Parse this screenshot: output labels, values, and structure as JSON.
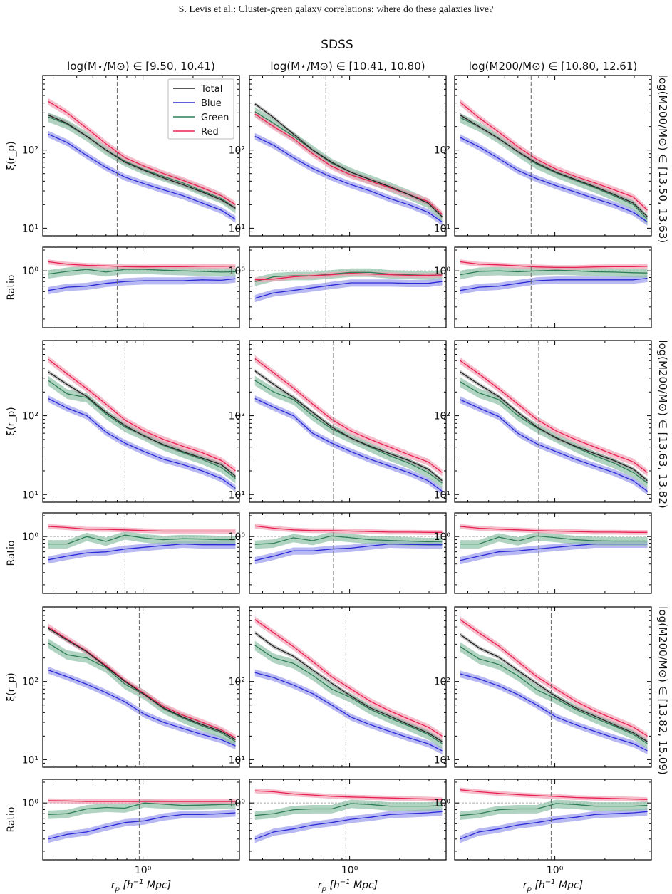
{
  "page_header": "S. Levis et al.: Cluster-green galaxy correlations: where do these galaxies live?",
  "colors": {
    "total": "#222222",
    "blue": "#2b2bd6",
    "green": "#2e7d55",
    "red": "#e8204f",
    "blue_band": "#9a9aee",
    "green_band": "#8fc2a7",
    "red_band": "#f2a3b6",
    "guide": "#666666"
  },
  "chart_data": {
    "type": "line",
    "title": "SDSS",
    "column_titles": [
      "log(M⋆/M⊙) ∈ [9.50, 10.41)",
      "log(M⋆/M⊙) ∈ [10.41, 10.80)",
      "log(M200/M⊙) ∈ [10.80, 12.61)"
    ],
    "row_titles": [
      "log(M200/M⊙) ∈ [13.50, 13.63)",
      "log(M200/M⊙) ∈ [13.63, 13.82)",
      "log(M200/M⊙) ∈ [13.82, 15.09)"
    ],
    "xlabel": "r_p [h⁻¹ Mpc]",
    "xlabel_parts": {
      "main": "r",
      "sub": "p",
      "rest": " [h",
      "sup": "−1",
      "end": " Mpc]"
    },
    "ylabel_xi": "ξ(r_p)",
    "ylabel_ratio": "Ratio",
    "xscale": "log",
    "xlim": [
      0.25,
      3.8
    ],
    "xi_ylim": [
      8,
      900
    ],
    "ratio_ylim": [
      0.15,
      2.2
    ],
    "xi_ticks": [
      {
        "value": 10,
        "label": "10¹"
      },
      {
        "value": 100,
        "label": "10²"
      }
    ],
    "ratio_ticks": [
      {
        "value": 1,
        "label": "10⁰"
      }
    ],
    "x_ticks": [
      {
        "value": 1,
        "label": "10⁰"
      }
    ],
    "legend": {
      "entries": [
        "Total",
        "Blue",
        "Green",
        "Red"
      ],
      "placement": "top-right",
      "panel": "row1-col1"
    },
    "x": [
      0.27,
      0.35,
      0.46,
      0.6,
      0.78,
      1.02,
      1.33,
      1.74,
      2.27,
      2.96,
      3.6
    ],
    "panels": [
      {
        "row": 0,
        "col": 0,
        "vline": 0.7,
        "total": [
          280,
          220,
          150,
          100,
          70,
          55,
          44,
          36,
          29,
          23,
          18
        ],
        "blue": [
          160,
          125,
          85,
          60,
          45,
          37,
          31,
          26,
          21,
          17,
          13
        ],
        "green": [
          265,
          215,
          150,
          100,
          72,
          56,
          46,
          38,
          30,
          24,
          18
        ],
        "red": [
          420,
          300,
          190,
          120,
          80,
          62,
          50,
          41,
          33,
          26,
          20
        ],
        "ratio_blue": [
          0.52,
          0.58,
          0.6,
          0.66,
          0.7,
          0.72,
          0.72,
          0.72,
          0.74,
          0.73,
          0.77
        ],
        "ratio_green": [
          0.9,
          0.98,
          1.05,
          0.96,
          1.05,
          1.05,
          1.02,
          1.0,
          0.98,
          0.96,
          0.97
        ],
        "ratio_red": [
          1.35,
          1.25,
          1.2,
          1.18,
          1.15,
          1.14,
          1.15,
          1.15,
          1.16,
          1.16,
          1.17
        ]
      },
      {
        "row": 0,
        "col": 1,
        "vline": 0.72,
        "total": [
          390,
          260,
          160,
          100,
          70,
          52,
          42,
          34,
          27,
          21,
          14
        ],
        "blue": [
          150,
          115,
          80,
          58,
          45,
          36,
          30,
          24,
          20,
          16,
          12
        ],
        "green": [
          310,
          220,
          150,
          100,
          68,
          52,
          42,
          34,
          27,
          21,
          14
        ],
        "red": [
          290,
          200,
          140,
          90,
          62,
          48,
          40,
          33,
          27,
          22,
          15
        ],
        "ratio_blue": [
          0.4,
          0.48,
          0.52,
          0.57,
          0.62,
          0.67,
          0.67,
          0.67,
          0.66,
          0.66,
          0.7
        ],
        "ratio_green": [
          0.7,
          0.82,
          0.85,
          0.85,
          0.9,
          0.95,
          0.95,
          0.9,
          0.88,
          0.86,
          0.88
        ],
        "ratio_red": [
          0.74,
          0.76,
          0.82,
          0.85,
          0.88,
          0.92,
          0.9,
          0.88,
          0.86,
          0.86,
          0.87
        ]
      },
      {
        "row": 0,
        "col": 2,
        "vline": 0.72,
        "total": [
          280,
          200,
          140,
          95,
          68,
          52,
          42,
          34,
          27,
          21,
          14
        ],
        "blue": [
          145,
          110,
          78,
          55,
          43,
          35,
          29,
          24,
          20,
          16,
          12
        ],
        "green": [
          260,
          200,
          140,
          95,
          66,
          51,
          41,
          33,
          26,
          20,
          13
        ],
        "red": [
          410,
          260,
          170,
          110,
          76,
          57,
          46,
          38,
          31,
          25,
          17
        ],
        "ratio_blue": [
          0.52,
          0.58,
          0.6,
          0.66,
          0.72,
          0.74,
          0.74,
          0.74,
          0.74,
          0.74,
          0.78
        ],
        "ratio_green": [
          0.88,
          0.98,
          1.0,
          0.97,
          1.0,
          1.02,
          1.0,
          0.97,
          0.96,
          0.94,
          0.93
        ],
        "ratio_red": [
          1.35,
          1.25,
          1.22,
          1.18,
          1.14,
          1.12,
          1.12,
          1.14,
          1.15,
          1.15,
          1.16
        ]
      },
      {
        "row": 1,
        "col": 0,
        "vline": 0.78,
        "total": [
          360,
          250,
          175,
          110,
          75,
          55,
          43,
          35,
          29,
          24,
          17
        ],
        "blue": [
          165,
          125,
          100,
          62,
          45,
          35,
          28,
          24,
          20,
          16,
          12
        ],
        "green": [
          280,
          190,
          170,
          105,
          72,
          56,
          42,
          34,
          28,
          22,
          16
        ],
        "red": [
          520,
          340,
          220,
          140,
          88,
          64,
          50,
          41,
          34,
          27,
          20
        ],
        "ratio_blue": [
          0.46,
          0.52,
          0.58,
          0.6,
          0.66,
          0.7,
          0.74,
          0.78,
          0.76,
          0.76,
          0.76
        ],
        "ratio_green": [
          0.78,
          0.78,
          1.0,
          0.85,
          1.05,
          0.95,
          0.9,
          0.93,
          0.92,
          0.9,
          0.9
        ],
        "ratio_red": [
          1.4,
          1.35,
          1.28,
          1.27,
          1.25,
          1.22,
          1.2,
          1.2,
          1.2,
          1.2,
          1.2
        ]
      },
      {
        "row": 1,
        "col": 1,
        "vline": 0.8,
        "total": [
          370,
          250,
          170,
          110,
          72,
          52,
          41,
          33,
          27,
          21,
          15
        ],
        "blue": [
          165,
          128,
          100,
          60,
          45,
          35,
          28,
          23,
          19,
          15,
          11
        ],
        "green": [
          280,
          200,
          160,
          100,
          68,
          52,
          40,
          31,
          25,
          19,
          14
        ],
        "red": [
          530,
          350,
          225,
          140,
          90,
          64,
          50,
          40,
          32,
          26,
          19
        ],
        "ratio_blue": [
          0.45,
          0.52,
          0.62,
          0.62,
          0.66,
          0.68,
          0.73,
          0.78,
          0.77,
          0.76,
          0.76
        ],
        "ratio_green": [
          0.77,
          0.8,
          0.96,
          0.87,
          1.02,
          0.96,
          0.9,
          0.88,
          0.86,
          0.84,
          0.85
        ],
        "ratio_red": [
          1.42,
          1.32,
          1.25,
          1.22,
          1.22,
          1.2,
          1.18,
          1.16,
          1.16,
          1.15,
          1.15
        ]
      },
      {
        "row": 1,
        "col": 2,
        "vline": 0.8,
        "total": [
          360,
          250,
          175,
          110,
          72,
          52,
          41,
          33,
          27,
          21,
          15
        ],
        "blue": [
          160,
          125,
          98,
          60,
          44,
          35,
          28,
          23,
          19,
          15,
          11
        ],
        "green": [
          270,
          195,
          160,
          100,
          70,
          53,
          40,
          31,
          25,
          19,
          14
        ],
        "red": [
          500,
          340,
          220,
          140,
          90,
          64,
          50,
          40,
          32,
          26,
          19
        ],
        "ratio_blue": [
          0.45,
          0.52,
          0.6,
          0.62,
          0.66,
          0.7,
          0.74,
          0.78,
          0.78,
          0.78,
          0.78
        ],
        "ratio_green": [
          0.78,
          0.78,
          0.98,
          0.86,
          1.02,
          0.96,
          0.9,
          0.87,
          0.86,
          0.86,
          0.86
        ],
        "ratio_red": [
          1.4,
          1.32,
          1.28,
          1.25,
          1.22,
          1.2,
          1.18,
          1.16,
          1.16,
          1.15,
          1.15
        ]
      },
      {
        "row": 2,
        "col": 0,
        "vline": 0.95,
        "total": [
          480,
          340,
          240,
          155,
          100,
          68,
          46,
          35,
          28,
          23,
          18
        ],
        "blue": [
          140,
          115,
          92,
          72,
          55,
          38,
          30,
          25,
          21,
          18,
          15
        ],
        "green": [
          310,
          220,
          200,
          150,
          92,
          68,
          45,
          34,
          27,
          22,
          17
        ],
        "red": [
          500,
          350,
          245,
          160,
          102,
          70,
          48,
          37,
          30,
          24,
          19
        ],
        "ratio_blue": [
          0.3,
          0.35,
          0.38,
          0.45,
          0.52,
          0.55,
          0.63,
          0.68,
          0.68,
          0.7,
          0.72
        ],
        "ratio_green": [
          0.68,
          0.7,
          0.82,
          0.86,
          0.84,
          1.0,
          0.96,
          0.92,
          0.93,
          0.95,
          0.96
        ],
        "ratio_red": [
          1.08,
          1.07,
          1.05,
          1.05,
          1.05,
          1.05,
          1.05,
          1.05,
          1.05,
          1.05,
          1.05
        ]
      },
      {
        "row": 2,
        "col": 1,
        "vline": 0.95,
        "total": [
          420,
          280,
          210,
          140,
          95,
          65,
          46,
          36,
          28,
          22,
          17
        ],
        "blue": [
          130,
          112,
          90,
          70,
          50,
          35,
          28,
          23,
          19,
          16,
          13
        ],
        "green": [
          290,
          200,
          170,
          120,
          80,
          62,
          44,
          34,
          27,
          21,
          16
        ],
        "red": [
          620,
          420,
          280,
          180,
          115,
          80,
          56,
          42,
          33,
          26,
          20
        ],
        "ratio_blue": [
          0.3,
          0.38,
          0.42,
          0.48,
          0.52,
          0.58,
          0.62,
          0.68,
          0.7,
          0.72,
          0.75
        ],
        "ratio_green": [
          0.66,
          0.7,
          0.8,
          0.82,
          0.82,
          0.98,
          0.95,
          0.9,
          0.9,
          0.9,
          0.92
        ],
        "ratio_red": [
          1.5,
          1.45,
          1.35,
          1.3,
          1.25,
          1.22,
          1.2,
          1.18,
          1.16,
          1.14,
          1.12
        ]
      },
      {
        "row": 2,
        "col": 2,
        "vline": 0.95,
        "total": [
          400,
          270,
          205,
          138,
          94,
          64,
          46,
          36,
          28,
          22,
          17
        ],
        "blue": [
          125,
          108,
          88,
          68,
          50,
          35,
          28,
          23,
          19,
          16,
          13
        ],
        "green": [
          280,
          195,
          165,
          118,
          78,
          60,
          44,
          34,
          27,
          21,
          16
        ],
        "red": [
          620,
          420,
          285,
          180,
          115,
          80,
          56,
          42,
          33,
          26,
          20
        ],
        "ratio_blue": [
          0.3,
          0.38,
          0.42,
          0.48,
          0.52,
          0.58,
          0.62,
          0.68,
          0.7,
          0.72,
          0.75
        ],
        "ratio_green": [
          0.66,
          0.7,
          0.8,
          0.82,
          0.82,
          0.98,
          0.95,
          0.9,
          0.9,
          0.9,
          0.92
        ],
        "ratio_red": [
          1.55,
          1.45,
          1.38,
          1.32,
          1.28,
          1.24,
          1.2,
          1.18,
          1.16,
          1.14,
          1.12
        ]
      }
    ]
  }
}
